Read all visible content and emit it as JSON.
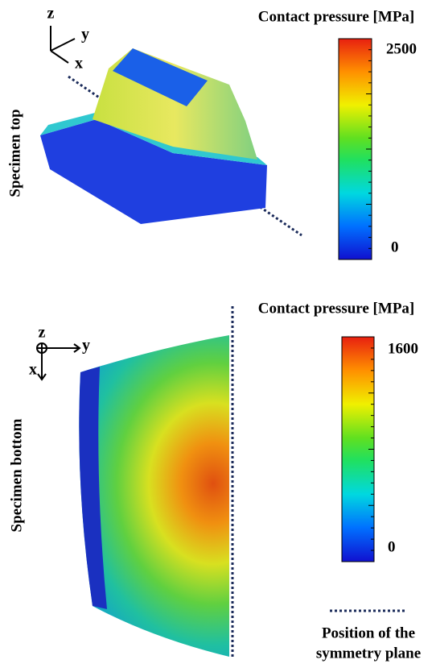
{
  "top": {
    "axes": {
      "z": "z",
      "y": "y",
      "x": "x"
    },
    "side_label": "Specimen top",
    "colorbar": {
      "title": "Contact pressure [MPa]",
      "max": 2500,
      "min": 0
    }
  },
  "bottom": {
    "axes": {
      "z": "z",
      "y": "y",
      "x": "x"
    },
    "side_label": "Specimen bottom",
    "colorbar": {
      "title": "Contact pressure [MPa]",
      "max": 1600,
      "min": 0
    }
  },
  "legend": {
    "lines": [
      "Position of the",
      "symmetry plane"
    ]
  }
}
